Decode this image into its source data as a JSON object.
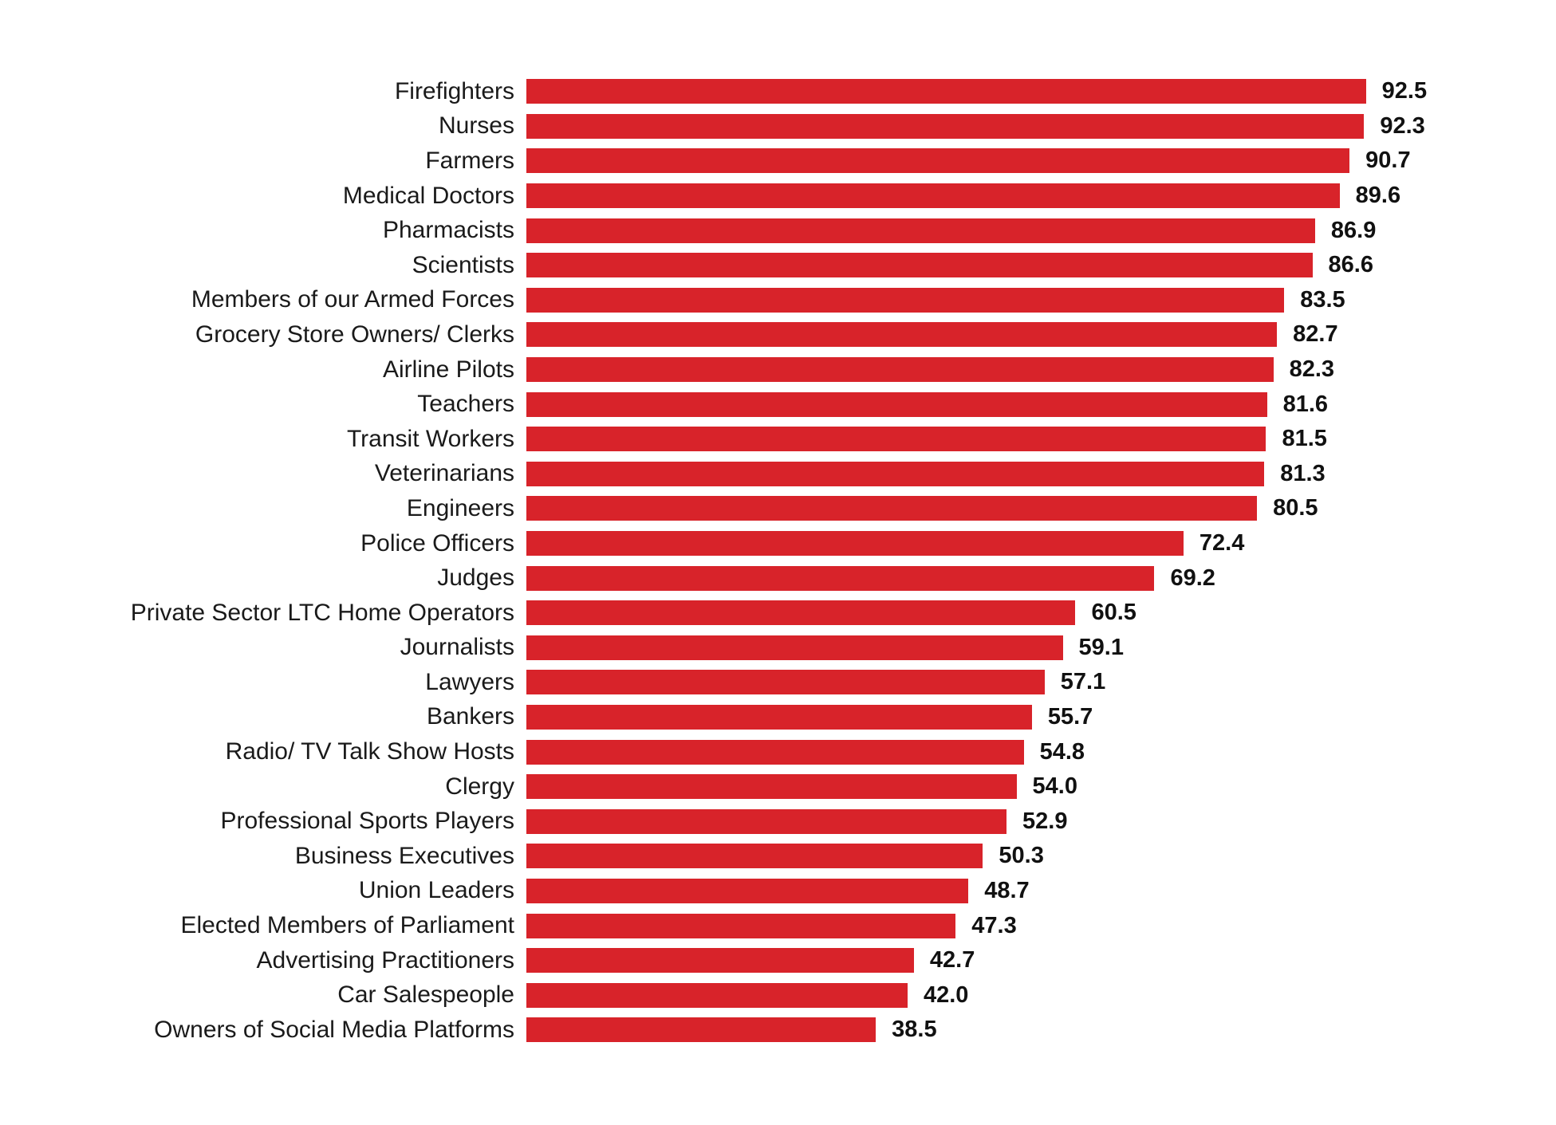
{
  "chart_data": {
    "type": "bar",
    "orientation": "horizontal",
    "title": "",
    "xlabel": "",
    "ylabel": "",
    "xlim": [
      0,
      100
    ],
    "grid": false,
    "legend": false,
    "bar_color": "#d8232a",
    "text_color": "#1a1a1a",
    "categories": [
      "Firefighters",
      "Nurses",
      "Farmers",
      "Medical Doctors",
      "Pharmacists",
      "Scientists",
      "Members of our Armed Forces",
      "Grocery Store Owners/ Clerks",
      "Airline Pilots",
      "Teachers",
      "Transit Workers",
      "Veterinarians",
      "Engineers",
      "Police Officers",
      "Judges",
      "Private Sector LTC Home Operators",
      "Journalists",
      "Lawyers",
      "Bankers",
      "Radio/ TV Talk Show Hosts",
      "Clergy",
      "Professional Sports Players",
      "Business Executives",
      "Union Leaders",
      "Elected Members of Parliament",
      "Advertising Practitioners",
      "Car Salespeople",
      "Owners of Social Media Platforms"
    ],
    "values": [
      92.5,
      92.3,
      90.7,
      89.6,
      86.9,
      86.6,
      83.5,
      82.7,
      82.3,
      81.6,
      81.5,
      81.3,
      80.5,
      72.4,
      69.2,
      60.5,
      59.1,
      57.1,
      55.7,
      54.8,
      54.0,
      52.9,
      50.3,
      48.7,
      47.3,
      42.7,
      42.0,
      38.5
    ],
    "value_labels": [
      "92.5",
      "92.3",
      "90.7",
      "89.6",
      "86.9",
      "86.6",
      "83.5",
      "82.7",
      "82.3",
      "81.6",
      "81.5",
      "81.3",
      "80.5",
      "72.4",
      "69.2",
      "60.5",
      "59.1",
      "57.1",
      "55.7",
      "54.8",
      "54.0",
      "52.9",
      "50.3",
      "48.7",
      "47.3",
      "42.7",
      "42.0",
      "38.5"
    ]
  }
}
